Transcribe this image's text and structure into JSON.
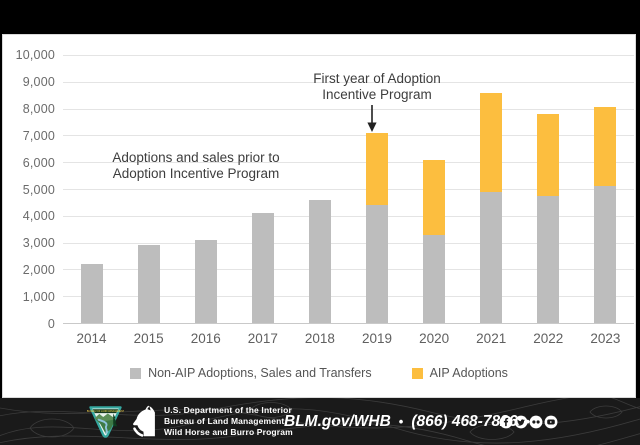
{
  "chart_data": {
    "type": "bar",
    "stacked": true,
    "categories": [
      "2014",
      "2015",
      "2016",
      "2017",
      "2018",
      "2019",
      "2020",
      "2021",
      "2022",
      "2023"
    ],
    "series": [
      {
        "name": "Non-AIP Adoptions, Sales and Transfers",
        "color": "#bdbdbd",
        "values": [
          2200,
          2900,
          3100,
          4100,
          4600,
          4400,
          3300,
          4900,
          4750,
          5100
        ]
      },
      {
        "name": "AIP Adoptions",
        "color": "#fcbe3f",
        "values": [
          0,
          0,
          0,
          0,
          0,
          2700,
          2800,
          3700,
          3050,
          2950
        ]
      }
    ],
    "ylim": [
      0,
      10000
    ],
    "ytick_interval": 1000,
    "ytick_labels": [
      "0",
      "1,000",
      "2,000",
      "3,000",
      "4,000",
      "5,000",
      "6,000",
      "7,000",
      "8,000",
      "9,000",
      "10,000"
    ],
    "grid": true,
    "legend_position": "bottom"
  },
  "annotations": {
    "prior": {
      "line1": "Adoptions and sales prior to",
      "line2": "Adoption Incentive Program"
    },
    "first_year": {
      "line1": "First year of Adoption",
      "line2": "Incentive Program"
    }
  },
  "footer": {
    "agency_lines": [
      "U.S. Department of the Interior",
      "Bureau of Land Management",
      "Wild Horse and Burro Program"
    ],
    "website": "BLM.gov/WHB",
    "phone": "(866) 468-7826",
    "separator": "•",
    "social_icons": [
      "facebook-icon",
      "twitter-icon",
      "flickr-icon",
      "youtube-icon"
    ],
    "colors": {
      "background": "#1a1a1a",
      "text": "#ffffff",
      "accent_teal": "#35a8a0"
    }
  }
}
